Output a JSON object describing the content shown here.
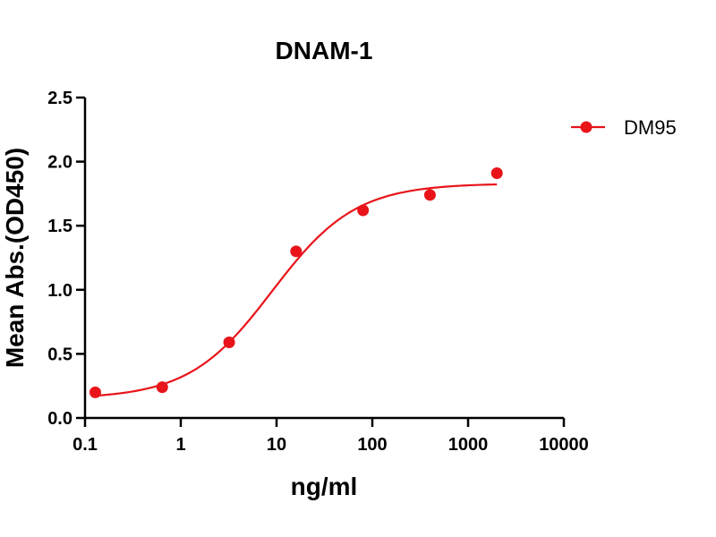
{
  "chart_data": {
    "type": "scatter",
    "title": "DNAM-1",
    "xlabel": "ng/ml",
    "ylabel": "Mean Abs.(OD450)",
    "x_scale": "log",
    "xlim": [
      0.1,
      10000
    ],
    "ylim": [
      0,
      2.5
    ],
    "x_ticks": [
      0.1,
      1,
      10,
      100,
      1000,
      10000
    ],
    "x_tick_labels": [
      "0.1",
      "1",
      "10",
      "100",
      "1000",
      "10000"
    ],
    "y_ticks": [
      0,
      0.5,
      1,
      1.5,
      2,
      2.5
    ],
    "y_tick_labels": [
      "0.0",
      "0.5",
      "1.0",
      "1.5",
      "2.0",
      "2.5"
    ],
    "grid": false,
    "legend_position": "top-right",
    "colors": {
      "series": "#e8141a"
    },
    "series": [
      {
        "name": "DM95",
        "x": [
          0.128,
          0.64,
          3.2,
          16,
          80,
          400,
          2000
        ],
        "y": [
          0.2,
          0.24,
          0.59,
          1.3,
          1.62,
          1.74,
          1.91
        ],
        "fit": {
          "model": "4PL",
          "bottom": 0.15,
          "top": 1.83,
          "ec50": 9,
          "hill": 1.0,
          "x_range": [
            0.128,
            2000
          ]
        }
      }
    ]
  }
}
